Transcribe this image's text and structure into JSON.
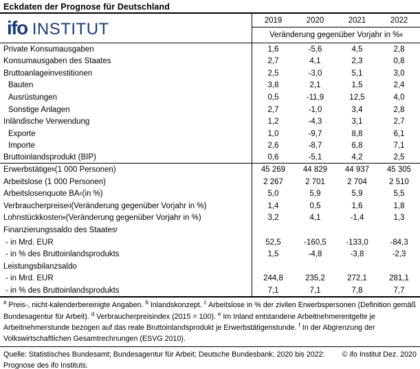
{
  "title": "Eckdaten der Prognose für Deutschland",
  "logo": {
    "mark": "ifo",
    "text": "INSTITUT",
    "color": "#1d3c78"
  },
  "table": {
    "years": [
      "2019",
      "2020",
      "2021",
      "2022"
    ],
    "unit_pre": "Veränderung gegenüber Vorjahr in %",
    "unit_sup": "a",
    "rows": [
      {
        "pre": "Private Konsumausgaben",
        "sup": "",
        "post": "",
        "indent": false,
        "dash": false,
        "sep": false,
        "values": [
          "1,6",
          "-5,6",
          "4,5",
          "2,8"
        ]
      },
      {
        "pre": "Konsumausgaben des Staates",
        "sup": "",
        "post": "",
        "indent": false,
        "dash": false,
        "sep": false,
        "values": [
          "2,7",
          "4,1",
          "2,3",
          "0,8"
        ]
      },
      {
        "pre": "Bruttoanlageinvestitionen",
        "sup": "",
        "post": "",
        "indent": false,
        "dash": false,
        "sep": false,
        "values": [
          "2,5",
          "-3,0",
          "5,1",
          "3,0"
        ]
      },
      {
        "pre": "Bauten",
        "sup": "",
        "post": "",
        "indent": true,
        "dash": false,
        "sep": false,
        "values": [
          "3,8",
          "2,1",
          "1,5",
          "2,4"
        ]
      },
      {
        "pre": "Ausrüstungen",
        "sup": "",
        "post": "",
        "indent": true,
        "dash": false,
        "sep": false,
        "values": [
          "0,5",
          "-11,9",
          "12,5",
          "4,0"
        ]
      },
      {
        "pre": "Sonstige Anlagen",
        "sup": "",
        "post": "",
        "indent": true,
        "dash": false,
        "sep": false,
        "values": [
          "2,7",
          "-1,0",
          "3,4",
          "2,8"
        ]
      },
      {
        "pre": "Inländische Verwendung",
        "sup": "",
        "post": "",
        "indent": false,
        "dash": false,
        "sep": false,
        "values": [
          "1,2",
          "-4,3",
          "3,1",
          "2,7"
        ]
      },
      {
        "pre": "Exporte",
        "sup": "",
        "post": "",
        "indent": true,
        "dash": false,
        "sep": false,
        "values": [
          "1,0",
          "-9,7",
          "8,8",
          "6,1"
        ]
      },
      {
        "pre": "Importe",
        "sup": "",
        "post": "",
        "indent": true,
        "dash": false,
        "sep": false,
        "values": [
          "2,6",
          "-8,7",
          "6,8",
          "7,1"
        ]
      },
      {
        "pre": "Bruttoinlandsprodukt (BIP)",
        "sup": "",
        "post": "",
        "indent": false,
        "dash": false,
        "sep": true,
        "values": [
          "0,6",
          "-5,1",
          "4,2",
          "2,5"
        ]
      },
      {
        "pre": "Erwerbstätige",
        "sup": "b",
        "post": " (1 000 Personen)",
        "indent": false,
        "dash": false,
        "sep": false,
        "values": [
          "45 269",
          "44 829",
          "44 937",
          "45 305"
        ]
      },
      {
        "pre": "Arbeitslose (1 000 Personen)",
        "sup": "",
        "post": "",
        "indent": false,
        "dash": false,
        "sep": false,
        "values": [
          "2 267",
          "2 701",
          "2 704",
          "2 510"
        ]
      },
      {
        "pre": "Arbeitslosenquote BA",
        "sup": "c",
        "post": " (in %)",
        "indent": false,
        "dash": false,
        "sep": false,
        "values": [
          "5,0",
          "5,9",
          "5,9",
          "5,5"
        ]
      },
      {
        "pre": "Verbraucherpreise",
        "sup": "d",
        "post": " (Veränderung gegenüber Vorjahr in %)",
        "indent": false,
        "dash": false,
        "sep": false,
        "values": [
          "1,4",
          "0,5",
          "1,6",
          "1,8"
        ]
      },
      {
        "pre": "Lohnstückkosten",
        "sup": "e",
        "post": " (Veränderung gegenüber Vorjahr in %)",
        "indent": false,
        "dash": false,
        "sep": false,
        "values": [
          "3,2",
          "4,1",
          "-1,4",
          "1,3"
        ]
      },
      {
        "pre": "Finanzierungssaldo des Staates",
        "sup": "f",
        "post": "",
        "indent": false,
        "dash": false,
        "sep": false,
        "values": [
          "",
          "",
          "",
          ""
        ]
      },
      {
        "pre": "- in Mrd. EUR",
        "sup": "",
        "post": "",
        "indent": false,
        "dash": true,
        "sep": false,
        "values": [
          "52,5",
          "-160,5",
          "-133,0",
          "-84,3"
        ]
      },
      {
        "pre": "- in % des Bruttoinlandsprodukts",
        "sup": "",
        "post": "",
        "indent": false,
        "dash": true,
        "sep": false,
        "values": [
          "1,5",
          "-4,8",
          "-3,8",
          "-2,3"
        ]
      },
      {
        "pre": "Leistungsbilanzsaldo",
        "sup": "",
        "post": "",
        "indent": false,
        "dash": false,
        "sep": false,
        "values": [
          "",
          "",
          "",
          ""
        ]
      },
      {
        "pre": "- in Mrd. EUR",
        "sup": "",
        "post": "",
        "indent": false,
        "dash": true,
        "sep": false,
        "values": [
          "244,8",
          "235,2",
          "272,1",
          "281,1"
        ]
      },
      {
        "pre": "- in % des Bruttoinlandsprodukts",
        "sup": "",
        "post": "",
        "indent": false,
        "dash": true,
        "sep": false,
        "values": [
          "7,1",
          "7,1",
          "7,8",
          "7,7"
        ]
      }
    ]
  },
  "footnotes": [
    {
      "sup": "a",
      "text": " Preis-, nicht-kalenderbereinigte Angaben. "
    },
    {
      "sup": "b",
      "text": " Inlandskonzept. "
    },
    {
      "sup": "c",
      "text": " Arbeitslose in % der zivilen Erwerbspersonen (Definition gemäß Bundesagentur für Arbeit). "
    },
    {
      "sup": "d",
      "text": " Verbraucherpreisindex (2015 = 100). "
    },
    {
      "sup": "e",
      "text": " Im Inland entstandene Arbeitnehmerentgelte je Arbeitnehmerstunde bezogen auf das reale Bruttoinlandsprodukt je Erwerbstätigenstunde. "
    },
    {
      "sup": "f",
      "text": " In der Abgrenzung der Volkswirtschaftlichen Gesamtrechnungen (ESVG 2010)."
    }
  ],
  "source": "Quelle: Statistisches Bundesamt; Bundesagentur für Arbeit; Deutsche Bundesbank; 2020 bis 2022: Prognose des ifo Instituts.",
  "copyright": "© ifo Institut Dez. 2020"
}
